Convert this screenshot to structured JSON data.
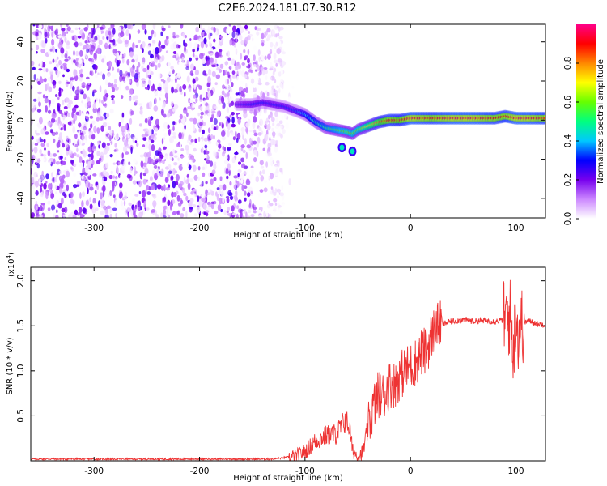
{
  "figure_title": "C2E6.2024.181.07.30.R12",
  "chart_data": [
    {
      "type": "heatmap",
      "title": "C2E6.2024.181.07.30.R12",
      "xlabel": "Height of straight line (km)",
      "ylabel": "Frequency (Hz)",
      "xlim": [
        -360,
        128
      ],
      "ylim": [
        -50,
        49
      ],
      "x_ticks": [
        -300,
        -200,
        -100,
        0,
        100
      ],
      "y_ticks": [
        -40,
        -20,
        0,
        20,
        40
      ],
      "x_tick_labels": [
        "-300",
        "-200",
        "-100",
        "0",
        "100"
      ],
      "y_tick_labels": [
        "-40",
        "-20",
        "0",
        "20",
        "40"
      ],
      "colorbar": {
        "label": "Normalized spectral amplitude",
        "range": [
          0,
          1
        ],
        "ticks": [
          0.0,
          0.2,
          0.4,
          0.6,
          0.8
        ],
        "tick_labels": [
          "0.0",
          "0.2",
          "0.4",
          "0.6",
          "0.8"
        ],
        "colormap": [
          "#ffffff",
          "#cc88ff",
          "#7700ee",
          "#0000ff",
          "#00c8ff",
          "#00ff80",
          "#66ff00",
          "#ffff00",
          "#ff8800",
          "#ff0000",
          "#ff0088"
        ]
      },
      "noise_region": {
        "x_from": -360,
        "x_to": -120,
        "amplitude_range": [
          0.0,
          0.25
        ]
      },
      "trace": {
        "x": [
          -165,
          -150,
          -140,
          -130,
          -120,
          -110,
          -100,
          -90,
          -80,
          -70,
          -60,
          -55,
          -50,
          -40,
          -30,
          -20,
          -10,
          0,
          20,
          40,
          60,
          80,
          90,
          100,
          110,
          128
        ],
        "freq": [
          8,
          8,
          9,
          8,
          7,
          5,
          3,
          -1,
          -4,
          -5,
          -6,
          -7,
          -5,
          -3,
          -1,
          0,
          0,
          1,
          1,
          1,
          1,
          1,
          2,
          1,
          1,
          1
        ],
        "amplitude": [
          0.25,
          0.3,
          0.3,
          0.3,
          0.3,
          0.32,
          0.4,
          0.45,
          0.5,
          0.55,
          0.6,
          0.6,
          0.6,
          0.7,
          0.8,
          0.9,
          0.85,
          0.95,
          0.9,
          0.95,
          0.95,
          0.9,
          0.9,
          0.95,
          0.95,
          0.9
        ]
      },
      "secondary_blobs": [
        {
          "x": -55,
          "freq": -16
        },
        {
          "x": -65,
          "freq": -14
        }
      ]
    },
    {
      "type": "line",
      "xlabel": "Height of straight line (km)",
      "ylabel": "SNR (10 * v/v)",
      "y_multiplier_label": "(x10",
      "y_multiplier_exponent": "4",
      "y_multiplier_close": ")",
      "xlim": [
        -360,
        128
      ],
      "ylim": [
        0,
        2.15
      ],
      "x_ticks": [
        -300,
        -200,
        -100,
        0,
        100
      ],
      "y_ticks": [
        0.5,
        1.0,
        1.5,
        2.0
      ],
      "x_tick_labels": [
        "-300",
        "-200",
        "-100",
        "0",
        "100"
      ],
      "y_tick_labels": [
        "0.5",
        "1.0",
        "1.5",
        "2.0"
      ],
      "line_color": "#ee3333",
      "series": [
        {
          "name": "SNR",
          "x": [
            -360,
            -300,
            -200,
            -130,
            -110,
            -100,
            -90,
            -80,
            -70,
            -62,
            -58,
            -55,
            -50,
            -45,
            -40,
            -35,
            -30,
            -25,
            -20,
            -15,
            -10,
            -5,
            0,
            5,
            10,
            15,
            20,
            25,
            30,
            40,
            50,
            60,
            70,
            80,
            90,
            95,
            98,
            100,
            102,
            105,
            110,
            115,
            120,
            128
          ],
          "y": [
            0.02,
            0.02,
            0.02,
            0.02,
            0.05,
            0.1,
            0.22,
            0.28,
            0.3,
            0.45,
            0.38,
            0.12,
            0.05,
            0.1,
            0.38,
            0.6,
            0.75,
            0.72,
            0.85,
            0.85,
            0.95,
            1.0,
            1.05,
            1.1,
            1.2,
            1.22,
            1.4,
            1.5,
            1.52,
            1.55,
            1.57,
            1.55,
            1.56,
            1.55,
            1.57,
            1.6,
            1.2,
            1.7,
            1.4,
            1.5,
            1.55,
            1.55,
            1.52,
            1.52
          ]
        }
      ]
    }
  ]
}
